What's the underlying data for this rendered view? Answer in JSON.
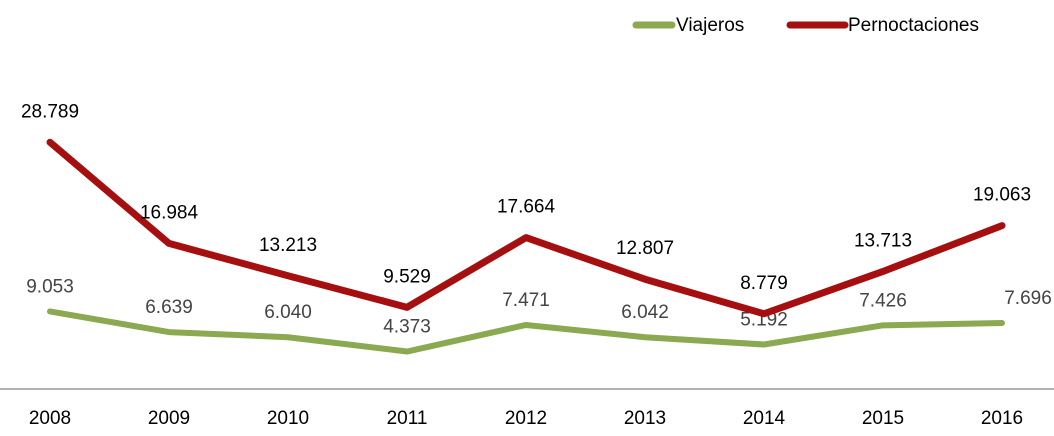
{
  "chart_data": {
    "type": "line",
    "categories": [
      "2008",
      "2009",
      "2010",
      "2011",
      "2012",
      "2013",
      "2014",
      "2015",
      "2016"
    ],
    "series": [
      {
        "name": "Viajeros",
        "color": "#8aa951",
        "values": [
          9.053,
          6.639,
          6.04,
          4.373,
          7.471,
          6.042,
          5.192,
          7.426,
          7.696
        ],
        "value_labels": [
          "9.053",
          "6.639",
          "6.040",
          "4.373",
          "7.471",
          "6.042",
          "5.192",
          "7.426",
          "7.696"
        ]
      },
      {
        "name": "Pernoctaciones",
        "color": "#a50f0f",
        "values": [
          28.789,
          16.984,
          13.213,
          9.529,
          17.664,
          12.807,
          8.779,
          13.713,
          19.063
        ],
        "value_labels": [
          "28.789",
          "16.984",
          "13.213",
          "9.529",
          "17.664",
          "12.807",
          "8.779",
          "13.713",
          "19.063"
        ]
      }
    ],
    "ylim": [
      0,
      35
    ],
    "legend": "top-right"
  }
}
